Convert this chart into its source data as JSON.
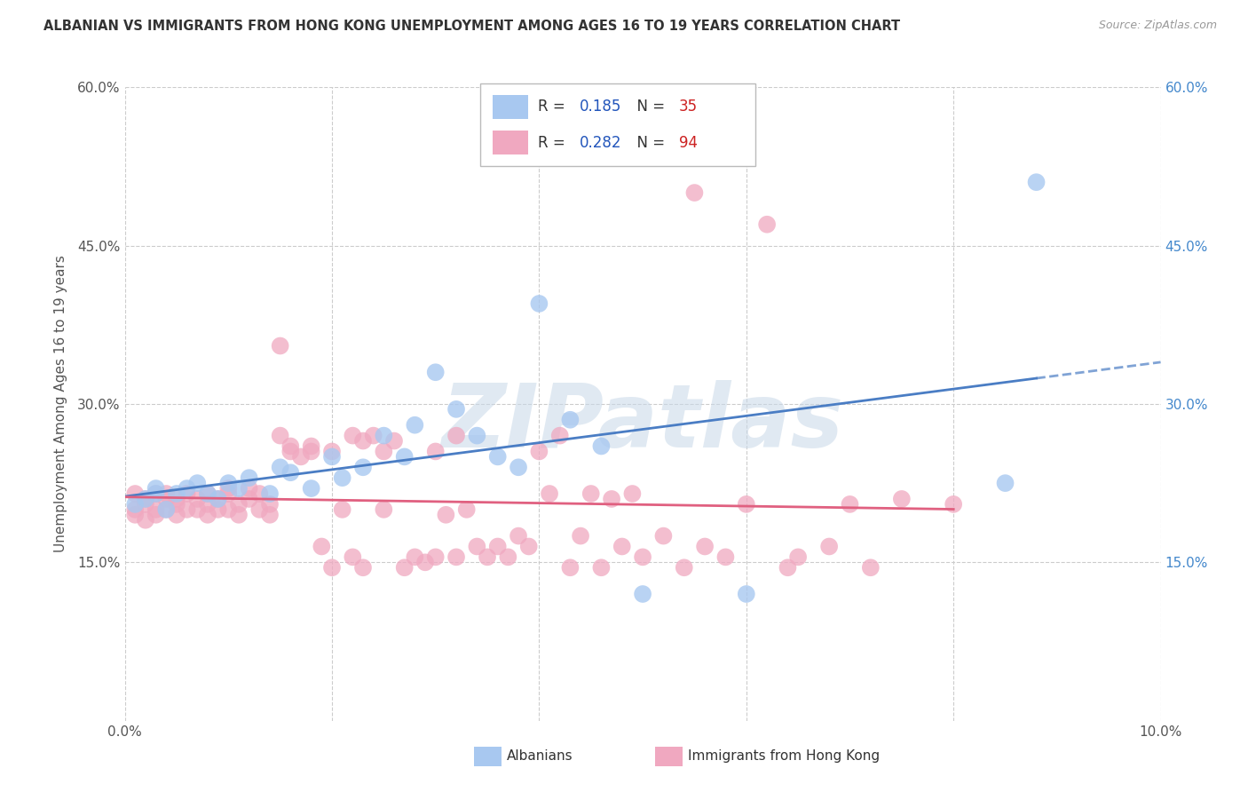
{
  "title": "ALBANIAN VS IMMIGRANTS FROM HONG KONG UNEMPLOYMENT AMONG AGES 16 TO 19 YEARS CORRELATION CHART",
  "source": "Source: ZipAtlas.com",
  "ylabel": "Unemployment Among Ages 16 to 19 years",
  "xlim": [
    0.0,
    0.1
  ],
  "ylim": [
    0.0,
    0.6
  ],
  "xticks": [
    0.0,
    0.02,
    0.04,
    0.06,
    0.08,
    0.1
  ],
  "yticks": [
    0.0,
    0.15,
    0.3,
    0.45,
    0.6
  ],
  "albanians_R": "0.185",
  "albanians_N": "35",
  "hk_R": "0.282",
  "hk_N": "94",
  "blue_color": "#a8c8f0",
  "pink_color": "#f0a8c0",
  "blue_line_color": "#4a7dc4",
  "pink_line_color": "#e06080",
  "legend_R_color": "#2255bb",
  "legend_N_color": "#cc2222",
  "watermark": "ZIPatlas",
  "alb_x": [
    0.001,
    0.002,
    0.003,
    0.003,
    0.004,
    0.005,
    0.006,
    0.007,
    0.008,
    0.009,
    0.01,
    0.011,
    0.012,
    0.014,
    0.015,
    0.016,
    0.018,
    0.02,
    0.021,
    0.023,
    0.025,
    0.027,
    0.028,
    0.03,
    0.032,
    0.034,
    0.036,
    0.038,
    0.04,
    0.043,
    0.046,
    0.05,
    0.06,
    0.085,
    0.088
  ],
  "alb_y": [
    0.205,
    0.21,
    0.215,
    0.22,
    0.2,
    0.215,
    0.22,
    0.225,
    0.215,
    0.21,
    0.225,
    0.22,
    0.23,
    0.215,
    0.24,
    0.235,
    0.22,
    0.25,
    0.23,
    0.24,
    0.27,
    0.25,
    0.28,
    0.33,
    0.295,
    0.27,
    0.25,
    0.24,
    0.395,
    0.285,
    0.26,
    0.12,
    0.12,
    0.225,
    0.51
  ],
  "hk_x": [
    0.001,
    0.001,
    0.001,
    0.002,
    0.002,
    0.002,
    0.003,
    0.003,
    0.003,
    0.004,
    0.004,
    0.004,
    0.005,
    0.005,
    0.005,
    0.006,
    0.006,
    0.007,
    0.007,
    0.008,
    0.008,
    0.008,
    0.009,
    0.009,
    0.01,
    0.01,
    0.01,
    0.011,
    0.011,
    0.012,
    0.012,
    0.013,
    0.013,
    0.014,
    0.014,
    0.015,
    0.015,
    0.016,
    0.016,
    0.017,
    0.018,
    0.018,
    0.019,
    0.02,
    0.02,
    0.021,
    0.022,
    0.022,
    0.023,
    0.023,
    0.024,
    0.025,
    0.025,
    0.026,
    0.027,
    0.028,
    0.029,
    0.03,
    0.03,
    0.031,
    0.032,
    0.032,
    0.033,
    0.034,
    0.035,
    0.036,
    0.037,
    0.038,
    0.039,
    0.04,
    0.041,
    0.042,
    0.043,
    0.044,
    0.045,
    0.046,
    0.047,
    0.048,
    0.049,
    0.05,
    0.052,
    0.054,
    0.055,
    0.056,
    0.058,
    0.06,
    0.062,
    0.064,
    0.065,
    0.068,
    0.07,
    0.072,
    0.075,
    0.08
  ],
  "hk_y": [
    0.2,
    0.195,
    0.215,
    0.205,
    0.19,
    0.21,
    0.215,
    0.2,
    0.195,
    0.21,
    0.2,
    0.215,
    0.195,
    0.21,
    0.205,
    0.215,
    0.2,
    0.21,
    0.2,
    0.215,
    0.195,
    0.205,
    0.2,
    0.21,
    0.22,
    0.2,
    0.215,
    0.205,
    0.195,
    0.22,
    0.21,
    0.2,
    0.215,
    0.205,
    0.195,
    0.27,
    0.355,
    0.255,
    0.26,
    0.25,
    0.255,
    0.26,
    0.165,
    0.255,
    0.145,
    0.2,
    0.27,
    0.155,
    0.265,
    0.145,
    0.27,
    0.255,
    0.2,
    0.265,
    0.145,
    0.155,
    0.15,
    0.255,
    0.155,
    0.195,
    0.27,
    0.155,
    0.2,
    0.165,
    0.155,
    0.165,
    0.155,
    0.175,
    0.165,
    0.255,
    0.215,
    0.27,
    0.145,
    0.175,
    0.215,
    0.145,
    0.21,
    0.165,
    0.215,
    0.155,
    0.175,
    0.145,
    0.5,
    0.165,
    0.155,
    0.205,
    0.47,
    0.145,
    0.155,
    0.165,
    0.205,
    0.145,
    0.21,
    0.205
  ]
}
